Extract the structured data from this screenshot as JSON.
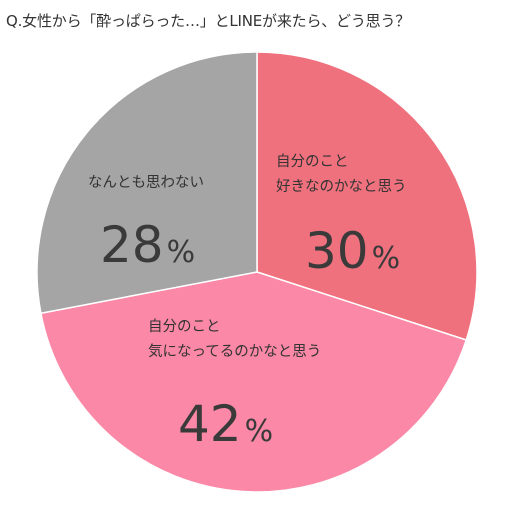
{
  "question": "Q.女性から「酔っぱらった…」とLINEが来たら、どう思う？",
  "chart_data": {
    "type": "pie",
    "slices": [
      {
        "label_lines": [
          "自分のこと",
          "好きなのかなと思う"
        ],
        "value": 30,
        "display": "30",
        "color": "#f0717e"
      },
      {
        "label_lines": [
          "自分のこと",
          "気になってるのかなと思う"
        ],
        "value": 42,
        "display": "42",
        "color": "#fa88a6"
      },
      {
        "label_lines": [
          "なんとも思わない"
        ],
        "value": 28,
        "display": "28",
        "color": "#a5a5a5"
      }
    ],
    "unit": "%"
  }
}
